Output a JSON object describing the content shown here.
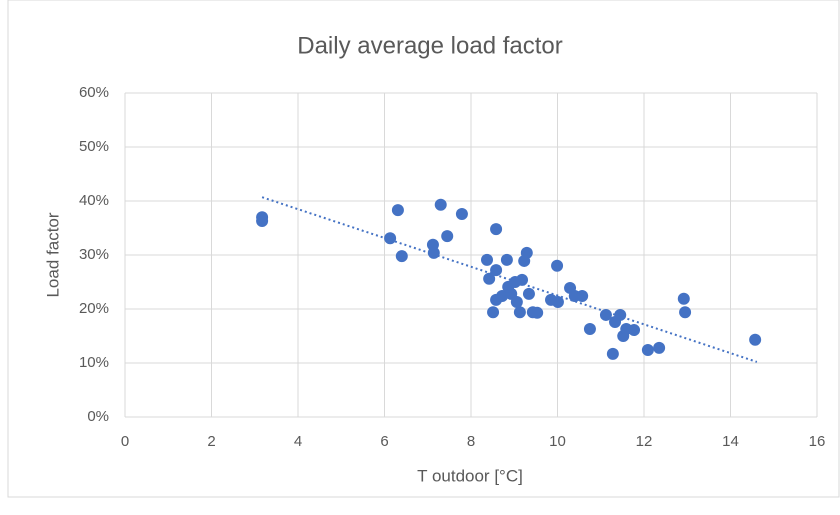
{
  "chart_data": {
    "type": "scatter",
    "title": "Daily average load factor",
    "x_label": "T outdoor [°C]",
    "y_label": "Load factor",
    "color": "#4472c4",
    "grid": true,
    "xlim": [
      0,
      16
    ],
    "xticks": [
      0,
      2,
      4,
      6,
      8,
      10,
      12,
      14,
      16
    ],
    "ylim": [
      0,
      60
    ],
    "yticks": [
      {
        "value": 0,
        "label": "0%"
      },
      {
        "value": 10,
        "label": "10%"
      },
      {
        "value": 20,
        "label": "20%"
      },
      {
        "value": 30,
        "label": "30%"
      },
      {
        "value": 40,
        "label": "40%"
      },
      {
        "value": 50,
        "label": "50%"
      },
      {
        "value": 60,
        "label": "60%"
      }
    ],
    "x": [
      3.17,
      3.17,
      6.13,
      6.31,
      6.4,
      7.12,
      7.14,
      7.3,
      7.45,
      7.79,
      8.37,
      8.42,
      8.51,
      8.58,
      8.58,
      8.58,
      8.72,
      8.83,
      8.86,
      8.93,
      9.02,
      9.06,
      9.13,
      9.18,
      9.23,
      9.29,
      9.34,
      9.43,
      9.53,
      9.85,
      9.99,
      10.01,
      10.29,
      10.4,
      10.57,
      10.75,
      11.12,
      11.28,
      11.33,
      11.45,
      11.52,
      11.59,
      11.77,
      12.09,
      12.35,
      12.92,
      12.95,
      14.57
    ],
    "values": [
      37.0,
      36.3,
      33.1,
      38.3,
      29.8,
      31.9,
      30.4,
      39.3,
      33.5,
      37.6,
      29.1,
      25.6,
      19.4,
      34.8,
      27.2,
      21.7,
      22.4,
      29.1,
      24.1,
      22.8,
      25.0,
      21.3,
      19.4,
      25.4,
      28.9,
      30.4,
      22.8,
      19.4,
      19.3,
      21.7,
      28.0,
      21.3,
      23.9,
      22.4,
      22.4,
      16.3,
      18.9,
      11.7,
      17.6,
      18.9,
      15.0,
      16.3,
      16.1,
      12.4,
      12.8,
      21.9,
      19.4,
      14.3
    ],
    "trendline": {
      "x": [
        3.17,
        14.61
      ],
      "values": [
        40.7,
        10.2
      ]
    }
  }
}
